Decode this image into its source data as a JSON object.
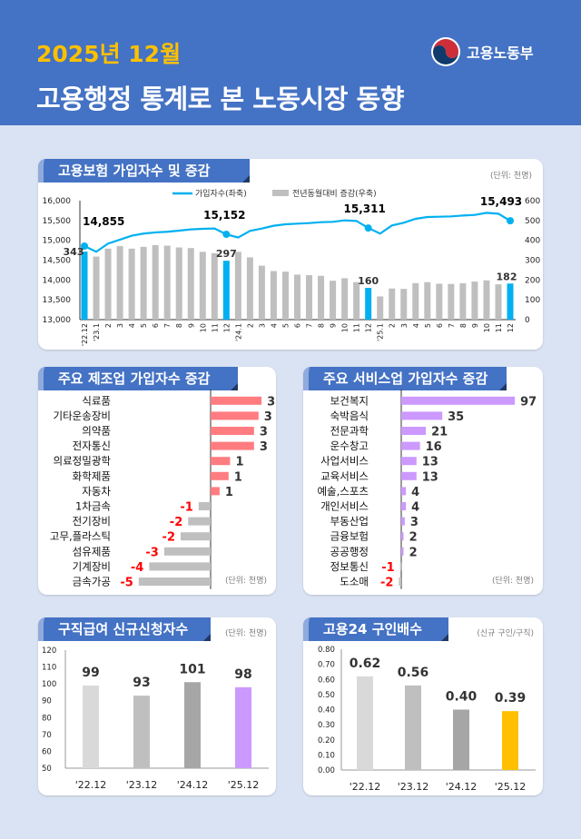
{
  "header": {
    "month": "2025년 12월",
    "title": "고용행정 통계로 본 노동시장 동향",
    "logo_text": "고용노동부"
  },
  "colors": {
    "header": "#4472c4",
    "accent": "#00b0f0",
    "bar_gray": "#bfbfbf",
    "positive_bar": "#ff7c80",
    "negative_label": "#ff0000",
    "service_bar": "#cc99ff",
    "highlight_purple": "#cc99ff",
    "highlight_yellow": "#ffc000"
  },
  "panels": {
    "insurance": {
      "title": "고용보험 가입자수 및 증감",
      "unit": "(단위: 천명)"
    },
    "manufacturing": {
      "title": "주요 제조업 가입자수 증감",
      "unit": "(단위: 천명)"
    },
    "services": {
      "title": "주요 서비스업 가입자수 증감",
      "unit": "(단위: 천명)"
    },
    "claims": {
      "title": "구직급여 신규신청자수",
      "unit": "(단위: 천명)"
    },
    "ratio": {
      "title": "고용24 구인배수",
      "unit": "(신규 구인/구직)"
    }
  },
  "chart_data": [
    {
      "type": "bar+line",
      "legend": [
        "가입자수(좌축)",
        "전년동월대비 증감(우축)"
      ],
      "legend_position": "top",
      "categories": [
        "'22.12",
        "'23.1",
        "2",
        "3",
        "4",
        "5",
        "6",
        "7",
        "8",
        "9",
        "10",
        "11",
        "12",
        "'24.1",
        "2",
        "3",
        "4",
        "5",
        "6",
        "7",
        "8",
        "9",
        "10",
        "11",
        "12",
        "'25.1",
        "2",
        "3",
        "4",
        "5",
        "6",
        "7",
        "8",
        "9",
        "10",
        "11",
        "12"
      ],
      "ylim_left": [
        13000,
        16000
      ],
      "yticks_left": [
        "13,000",
        "13,500",
        "14,000",
        "14,500",
        "15,000",
        "15,500",
        "16,000"
      ],
      "ylim_right": [
        0,
        600
      ],
      "yticks_right": [
        "0",
        "100",
        "200",
        "300",
        "400",
        "500",
        "600"
      ],
      "series": [
        {
          "name": "가입자수(좌축)",
          "type": "line",
          "values": [
            14855,
            14712,
            14918,
            15017,
            15116,
            15170,
            15200,
            15215,
            15245,
            15275,
            15290,
            15298,
            15152,
            15070,
            15237,
            15298,
            15367,
            15405,
            15420,
            15435,
            15458,
            15466,
            15503,
            15488,
            15311,
            15170,
            15374,
            15443,
            15542,
            15588,
            15595,
            15603,
            15625,
            15641,
            15694,
            15671,
            15493
          ]
        },
        {
          "name": "전년동월대비 증감(우축)",
          "type": "bar",
          "values": [
            343,
            318,
            358,
            371,
            358,
            367,
            376,
            373,
            364,
            361,
            342,
            335,
            297,
            342,
            314,
            272,
            245,
            242,
            227,
            224,
            221,
            196,
            209,
            189,
            160,
            117,
            157,
            155,
            184,
            189,
            181,
            180,
            183,
            192,
            198,
            178,
            182
          ]
        }
      ],
      "line_labels": [
        {
          "index": 0,
          "text": "14,855"
        },
        {
          "index": 12,
          "text": "15,152"
        },
        {
          "index": 24,
          "text": "15,311"
        },
        {
          "index": 36,
          "text": "15,493"
        }
      ],
      "bar_labels": [
        {
          "index": 0,
          "text": "343"
        },
        {
          "index": 12,
          "text": "297"
        },
        {
          "index": 24,
          "text": "160"
        },
        {
          "index": 36,
          "text": "182"
        }
      ],
      "highlight_indices": [
        0,
        12,
        24,
        36
      ]
    },
    {
      "type": "bar",
      "orientation": "horizontal",
      "categories": [
        "식료품",
        "기타운송장비",
        "의약품",
        "전자통신",
        "의료정밀광학",
        "화학제품",
        "자동차",
        "1차금속",
        "전기장비",
        "고무,플라스틱",
        "섬유제품",
        "기계장비",
        "금속가공"
      ],
      "values": [
        3.4,
        3.2,
        2.9,
        2.9,
        1.3,
        1.2,
        0.6,
        -0.8,
        -1.5,
        -2.0,
        -3.1,
        -4.1,
        -4.8
      ],
      "labels": [
        "3",
        "3",
        "3",
        "3",
        "1",
        "1",
        "1",
        "-1",
        "-2",
        "-2",
        "-3",
        "-4",
        "-5"
      ]
    },
    {
      "type": "bar",
      "orientation": "horizontal",
      "categories": [
        "보건복지",
        "숙박음식",
        "전문과학",
        "운수창고",
        "사업서비스",
        "교육서비스",
        "예술,스포츠",
        "개인서비스",
        "부동산업",
        "금융보험",
        "공공행정",
        "정보통신",
        "도소매"
      ],
      "values": [
        97,
        35,
        21,
        16,
        13,
        13,
        4,
        4,
        3,
        2,
        2,
        -1,
        -2
      ],
      "labels": [
        "97",
        "35",
        "21",
        "16",
        "13",
        "13",
        "4",
        "4",
        "3",
        "2",
        "2",
        "-1",
        "-2"
      ]
    },
    {
      "type": "bar",
      "categories": [
        "'22.12",
        "'23.12",
        "'24.12",
        "'25.12"
      ],
      "values": [
        99,
        93,
        101,
        98
      ],
      "labels": [
        "99",
        "93",
        "101",
        "98"
      ],
      "ylim": [
        50,
        120
      ],
      "yticks": [
        "50",
        "60",
        "70",
        "80",
        "90",
        "100",
        "110",
        "120"
      ],
      "colors": [
        "#d9d9d9",
        "#bfbfbf",
        "#a6a6a6",
        "#cc99ff"
      ]
    },
    {
      "type": "bar",
      "categories": [
        "'22.12",
        "'23.12",
        "'24.12",
        "'25.12"
      ],
      "values": [
        0.62,
        0.56,
        0.4,
        0.39
      ],
      "labels": [
        "0.62",
        "0.56",
        "0.40",
        "0.39"
      ],
      "ylim": [
        0,
        0.8
      ],
      "yticks": [
        "0.00",
        "0.10",
        "0.20",
        "0.30",
        "0.40",
        "0.50",
        "0.60",
        "0.70",
        "0.80"
      ],
      "colors": [
        "#d9d9d9",
        "#bfbfbf",
        "#a6a6a6",
        "#ffc000"
      ]
    }
  ]
}
